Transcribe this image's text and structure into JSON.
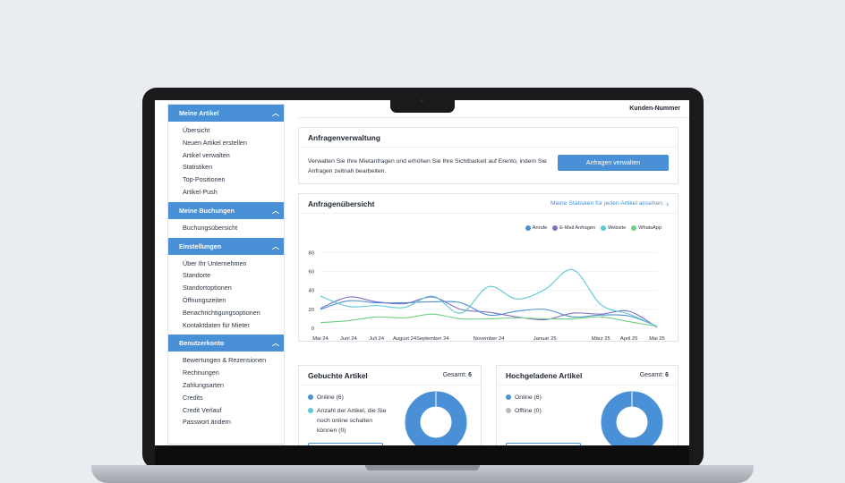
{
  "sidebar": {
    "sections": [
      {
        "title": "Meine Artikel",
        "items": [
          "Übersicht",
          "Neuen Artikel erstellen",
          "Artikel verwalten",
          "Statistiken",
          "Top-Positionen",
          "Artikel-Push"
        ]
      },
      {
        "title": "Meine Buchungen",
        "items": [
          "Buchungsübersicht"
        ]
      },
      {
        "title": "Einstellungen",
        "items": [
          "Über Ihr Unternehmen",
          "Standorte",
          "Standortoptionen",
          "Öffnungszeiten",
          "Benachrichtigungsoptionen",
          "Kontaktdaten für Mieter"
        ]
      },
      {
        "title": "Benutzerkonto",
        "items": [
          "Bewertungen & Rezensionen",
          "Rechnungen",
          "Zahlungsarten",
          "Credits",
          "Credit Verlauf",
          "Passwort ändern"
        ]
      }
    ]
  },
  "topbar": {
    "customer_number_label": "Kunden-Nummer"
  },
  "requests_card": {
    "title": "Anfragenverwaltung",
    "description": "Verwalten Sie Ihre Mietanfragen und erhöhen Sie Ihre Sichtbarkeit auf Erento, indem Sie Anfragen zeitnah bearbeiten.",
    "button_label": "Anfragen verwalten"
  },
  "overview_card": {
    "title": "Anfragenübersicht",
    "link_label": "Meine Statisken für jeden Artikel ansehen"
  },
  "chart_data": {
    "type": "line",
    "x": [
      "Mai 24",
      "Juni 24",
      "Juli 24",
      "August 24",
      "September 24",
      "Oktober 24",
      "November 24",
      "Dezember 24",
      "Januar 25",
      "Februar 25",
      "März 25",
      "April 25",
      "Mai 25"
    ],
    "tick_labels": [
      "Mai 24",
      "Juni 24",
      "Juli 24",
      "August 24",
      "September 24",
      "November 24",
      "Januar 25",
      "März 25",
      "April 25",
      "Mai 25"
    ],
    "tick_index": [
      0,
      1,
      2,
      3,
      4,
      6,
      8,
      10,
      11,
      12
    ],
    "yticks": [
      0,
      20,
      40,
      60,
      80
    ],
    "ylim": [
      0,
      88
    ],
    "grid": true,
    "legend_position": "top-right",
    "series": [
      {
        "name": "Anrufe",
        "color": "#4a90d6",
        "values": [
          20,
          29,
          27,
          27,
          28,
          27,
          14,
          18,
          20,
          12,
          14,
          13,
          2
        ]
      },
      {
        "name": "E-Mail Anfragen",
        "color": "#7b6fc6",
        "values": [
          21,
          33,
          28,
          26,
          33,
          20,
          17,
          12,
          9,
          16,
          15,
          18,
          1
        ]
      },
      {
        "name": "Website",
        "color": "#5bc8d2",
        "values": [
          34,
          23,
          24,
          22,
          34,
          16,
          44,
          31,
          41,
          62,
          25,
          15,
          2
        ]
      },
      {
        "name": "WhatsApp",
        "color": "#6fcf7f",
        "values": [
          6,
          8,
          12,
          11,
          15,
          10,
          10,
          11,
          10,
          10,
          12,
          7,
          2
        ]
      }
    ]
  },
  "booked_card": {
    "title": "Gebuchte Artikel",
    "total_label": "Gesamt:",
    "total_value": "6",
    "items": [
      {
        "label": "Online (6)",
        "color": "#4a90d6"
      },
      {
        "label": "Anzahl der Artikel, die Sie noch online schalten können (0)",
        "color": "#5bc8d2"
      }
    ],
    "donut_values": [
      6,
      0
    ]
  },
  "uploaded_card": {
    "title": "Hochgeladene Artikel",
    "total_label": "Gesamt:",
    "total_value": "6",
    "items": [
      {
        "label": "Online (6)",
        "color": "#4a90d6"
      },
      {
        "label": "Offline (0)",
        "color": "#b5b8bd"
      }
    ],
    "donut_values": [
      6,
      0
    ]
  }
}
